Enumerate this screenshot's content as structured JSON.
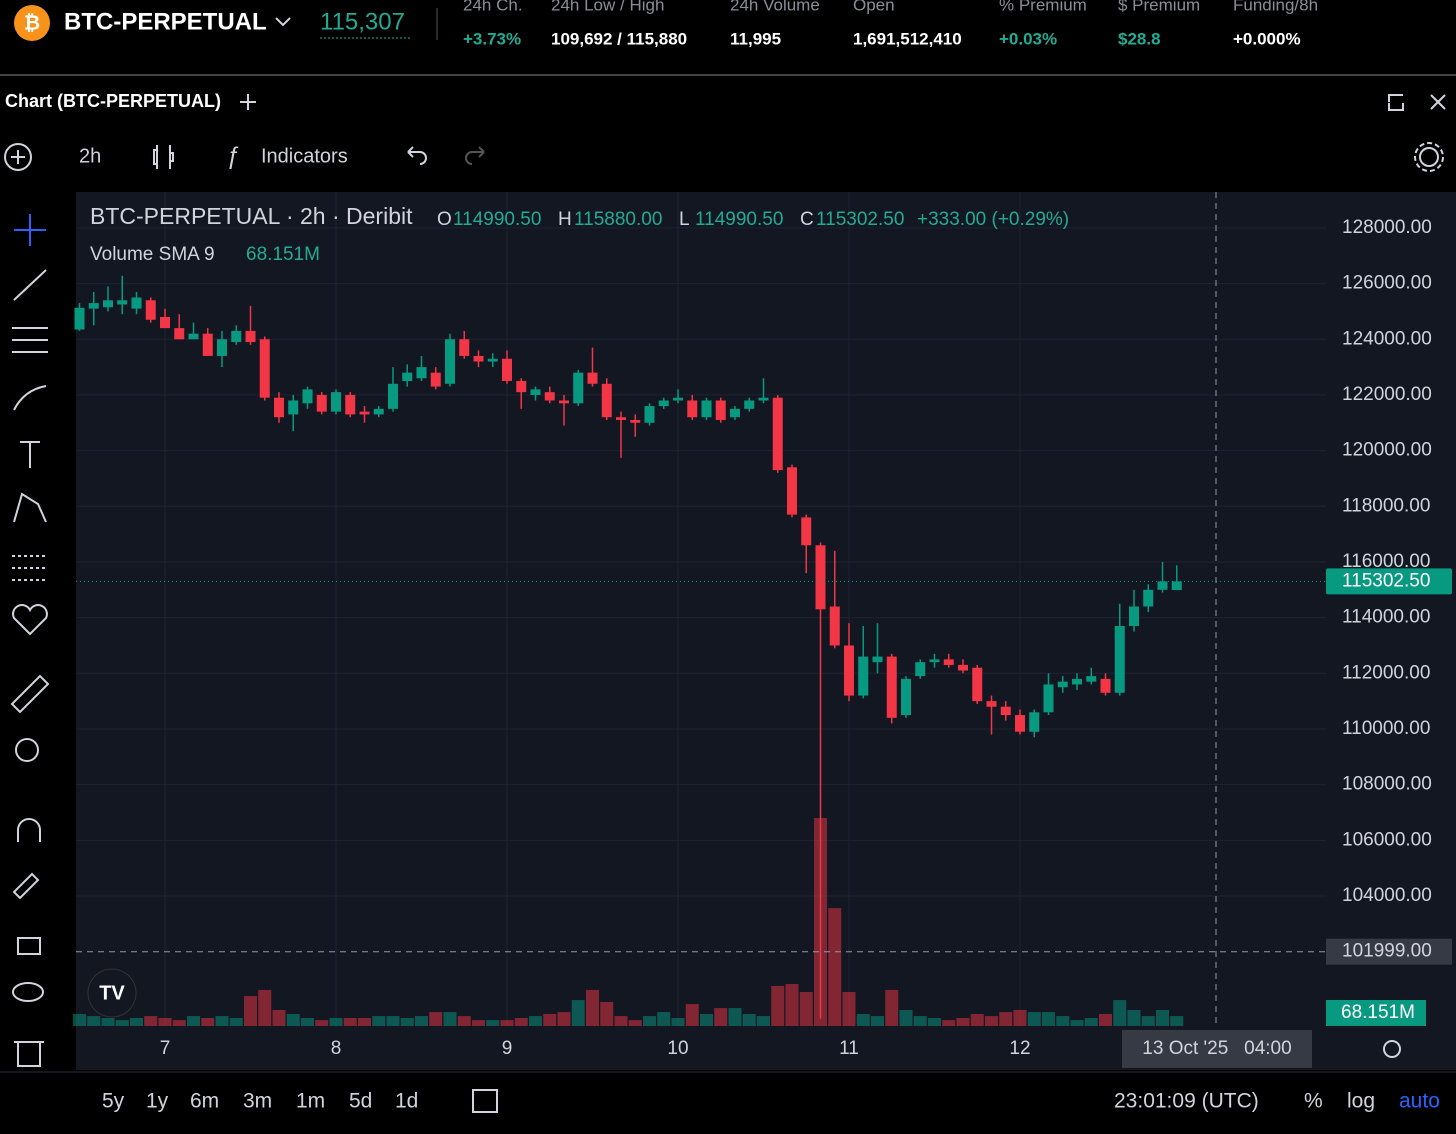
{
  "header": {
    "symbol": "BTC-PERPETUAL",
    "price": "115,307",
    "stats": [
      {
        "label": "24h Ch.",
        "value": "+3.73%"
      },
      {
        "label": "24h Low / High",
        "value": "109,692 / 115,880"
      },
      {
        "label": "24h Volume",
        "value": "11,995"
      },
      {
        "label": "Open",
        "value": "1,691,512,410"
      },
      {
        "label": "% Premium",
        "value": "+0.03%"
      },
      {
        "label": "$ Premium",
        "value": "$28.8"
      },
      {
        "label": "Funding/8h",
        "value": "+0.000%"
      }
    ]
  },
  "panel": {
    "title": "Chart (BTC-PERPETUAL)"
  },
  "toolbar": {
    "interval": "2h",
    "indicators": "Indicators"
  },
  "chart_data": {
    "type": "candlestick",
    "title": "BTC-PERPETUAL · 2h · Deribit",
    "ohlc_legend": [
      {
        "key": "O",
        "value": "114990.50"
      },
      {
        "key": "H",
        "value": "115880.00"
      },
      {
        "key": "L",
        "value": "114990.50"
      },
      {
        "key": "C",
        "value": "115302.50"
      }
    ],
    "change": "+333.00 (+0.29%)",
    "volume_legend": "Volume SMA 9",
    "volume_sma": {
      "value": 68.151,
      "label": "68.151M"
    },
    "categories": [
      null,
      null,
      null,
      null,
      null,
      null,
      "7",
      null,
      null,
      null,
      null,
      null,
      null,
      null,
      null,
      null,
      null,
      null,
      "8",
      null,
      null,
      null,
      null,
      null,
      null,
      null,
      null,
      null,
      null,
      null,
      "9",
      null,
      null,
      null,
      null,
      null,
      null,
      null,
      null,
      null,
      null,
      null,
      "10",
      null,
      null,
      null,
      null,
      null,
      null,
      null,
      null,
      null,
      null,
      null,
      "11",
      null,
      null,
      null,
      null,
      null,
      null,
      null,
      null,
      null,
      null,
      null,
      "12",
      null,
      null,
      null,
      null,
      null,
      null,
      null,
      null,
      null,
      null,
      null
    ],
    "open": [
      124350,
      125100,
      125150,
      125250,
      125100,
      125400,
      124800,
      124400,
      124000,
      124200,
      123400,
      123900,
      124300,
      124000,
      121900,
      121300,
      121700,
      122000,
      121400,
      122000,
      121400,
      121300,
      121500,
      122500,
      122600,
      122800,
      122400,
      124000,
      123400,
      123200,
      123300,
      122500,
      122000,
      122100,
      121800,
      121700,
      122800,
      122400,
      121200,
      121100,
      121000,
      121600,
      121800,
      121800,
      121200,
      121800,
      121200,
      121500,
      121800,
      121900,
      119400,
      117600,
      116600,
      114400,
      113000,
      111200,
      112400,
      112600,
      110500,
      111900,
      112400,
      112500,
      112300,
      112200,
      111000,
      110800,
      110500,
      109900,
      110600,
      111500,
      111600,
      111700,
      111800,
      111300,
      113700,
      114400,
      115000,
      114990.5
    ],
    "high": [
      125300,
      125700,
      125900,
      126280,
      125700,
      125500,
      125100,
      124900,
      124600,
      124400,
      124300,
      124500,
      125200,
      124100,
      122100,
      122000,
      122300,
      122100,
      122200,
      122100,
      121600,
      121600,
      123000,
      123100,
      123400,
      123000,
      124200,
      124300,
      123600,
      123500,
      123600,
      122600,
      122300,
      122300,
      122000,
      122900,
      123700,
      122600,
      121400,
      121300,
      121700,
      121900,
      122200,
      122000,
      121900,
      121900,
      121600,
      121900,
      122600,
      122000,
      119500,
      117700,
      116700,
      116400,
      113800,
      113700,
      113800,
      112700,
      111900,
      112500,
      112700,
      112700,
      112500,
      112300,
      111200,
      111000,
      110700,
      110700,
      112000,
      111900,
      112000,
      112200,
      112000,
      114500,
      115000,
      115200,
      116000,
      115880
    ],
    "low": [
      124300,
      124500,
      125000,
      124900,
      124900,
      124600,
      124400,
      124000,
      124100,
      123500,
      123000,
      123800,
      123800,
      121800,
      121000,
      120700,
      121500,
      121300,
      121300,
      121200,
      121000,
      121200,
      121400,
      122300,
      122500,
      122200,
      122300,
      123300,
      123000,
      123000,
      122400,
      121500,
      121800,
      121700,
      120900,
      121600,
      122300,
      121100,
      119740,
      120500,
      120900,
      121500,
      121700,
      121100,
      121100,
      121000,
      121100,
      121400,
      121700,
      119200,
      117600,
      115600,
      99600,
      112900,
      111000,
      111100,
      112000,
      110200,
      110400,
      111800,
      112200,
      112200,
      112000,
      110900,
      109800,
      110300,
      109800,
      109700,
      110500,
      111300,
      111400,
      111600,
      111200,
      111200,
      113500,
      114200,
      114900,
      114990.5
    ],
    "close": [
      125130,
      125300,
      125400,
      125400,
      125500,
      124700,
      124400,
      124000,
      124200,
      123400,
      124000,
      124300,
      123900,
      121900,
      121200,
      121800,
      122200,
      121400,
      122100,
      121300,
      121300,
      121500,
      122400,
      122800,
      123000,
      122300,
      124000,
      123400,
      123200,
      123300,
      122500,
      122100,
      122200,
      121800,
      121700,
      122800,
      122400,
      121200,
      121100,
      121000,
      121600,
      121800,
      121900,
      121200,
      121800,
      121100,
      121500,
      121800,
      121900,
      119300,
      117700,
      116600,
      114300,
      113000,
      111200,
      112600,
      112600,
      110400,
      111800,
      112400,
      112500,
      112300,
      112100,
      111000,
      110800,
      110500,
      109900,
      110600,
      111600,
      111700,
      111800,
      111900,
      111300,
      113700,
      114400,
      115000,
      115300,
      115302.5
    ],
    "volume": {
      "values": [
        63,
        52,
        42,
        31,
        42,
        52,
        42,
        31,
        52,
        42,
        52,
        42,
        157,
        189,
        84,
        63,
        42,
        31,
        42,
        42,
        42,
        52,
        52,
        42,
        52,
        73,
        73,
        52,
        31,
        31,
        31,
        42,
        52,
        63,
        73,
        136,
        189,
        126,
        52,
        31,
        52,
        73,
        42,
        115,
        63,
        94,
        94,
        63,
        52,
        210,
        220,
        178,
        1090,
        618,
        178,
        63,
        52,
        189,
        84,
        52,
        42,
        31,
        42,
        63,
        52,
        73,
        84,
        73,
        73,
        52,
        31,
        42,
        63,
        136,
        84,
        52,
        84,
        52
      ]
    },
    "up_color": "#089981",
    "down_color": "#f23645",
    "ylim": [
      99330,
      129290
    ],
    "yticks": [
      {
        "value": 104000,
        "label": "104000.00"
      },
      {
        "value": 106000,
        "label": "106000.00"
      },
      {
        "value": 108000,
        "label": "108000.00"
      },
      {
        "value": 110000,
        "label": "110000.00"
      },
      {
        "value": 112000,
        "label": "112000.00"
      },
      {
        "value": 114000,
        "label": "114000.00"
      },
      {
        "value": 116000,
        "label": "116000.00"
      },
      {
        "value": 118000,
        "label": "118000.00"
      },
      {
        "value": 120000,
        "label": "120000.00"
      },
      {
        "value": 122000,
        "label": "122000.00"
      },
      {
        "value": 124000,
        "label": "124000.00"
      },
      {
        "value": 126000,
        "label": "126000.00"
      },
      {
        "value": 128000,
        "label": "128000.00"
      }
    ],
    "price_line": {
      "value": 115302.5,
      "label": "115302.50"
    },
    "crosshair": {
      "value": 101999,
      "label": "101999.00",
      "x_label": "13 Oct '25   04:00"
    },
    "grid": true
  },
  "bottom": {
    "ranges": [
      "5y",
      "1y",
      "6m",
      "3m",
      "1m",
      "5d",
      "1d"
    ],
    "time": "23:01:09 (UTC)",
    "options": [
      "%",
      "log",
      "auto"
    ]
  }
}
